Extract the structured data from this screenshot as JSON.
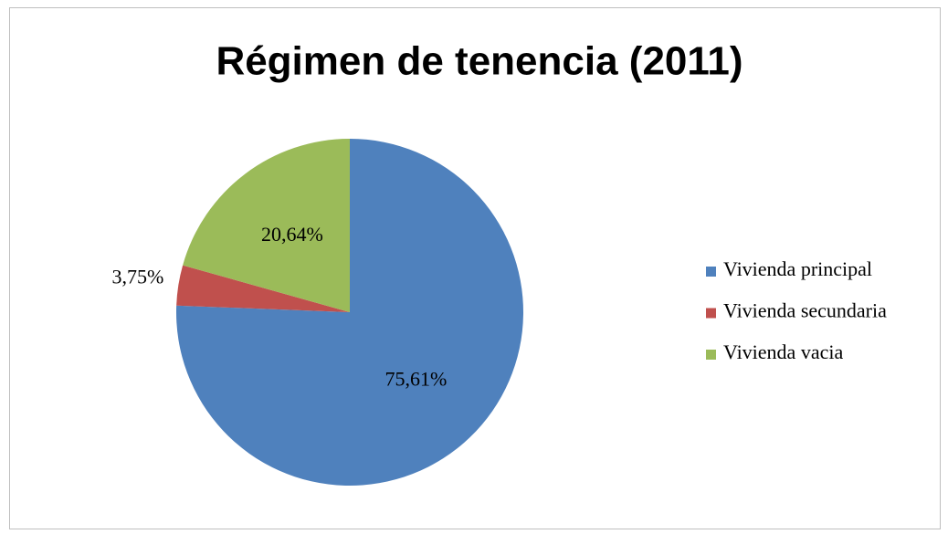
{
  "chart_data": {
    "type": "pie",
    "title": "Régimen de tenencia (2011)",
    "categories": [
      "Vivienda principal",
      "Vivienda secundaria",
      "Vivienda vacia"
    ],
    "values": [
      75.61,
      3.75,
      20.64
    ],
    "value_labels": [
      "75,61%",
      "3,75%",
      "20,64%"
    ],
    "colors": [
      "#4f81bd",
      "#c0504d",
      "#9bbb59"
    ],
    "legend": "right"
  }
}
